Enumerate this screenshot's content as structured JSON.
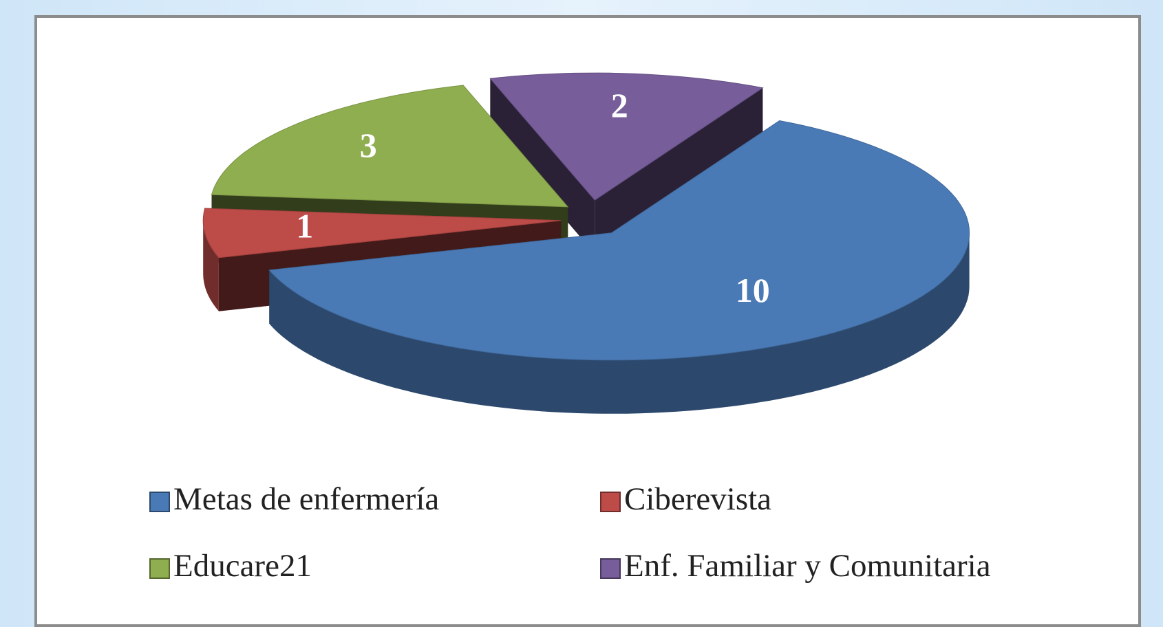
{
  "chart_data": {
    "type": "pie",
    "categories": [
      "Metas de enfermería",
      "Ciberevista",
      "Educare21",
      "Enf. Familiar y Comunitaria"
    ],
    "values": [
      10,
      1,
      3,
      2
    ],
    "colors": [
      "#4a7ab5",
      "#bd4b48",
      "#8fae4f",
      "#775d9a"
    ],
    "legend": "bottom"
  }
}
